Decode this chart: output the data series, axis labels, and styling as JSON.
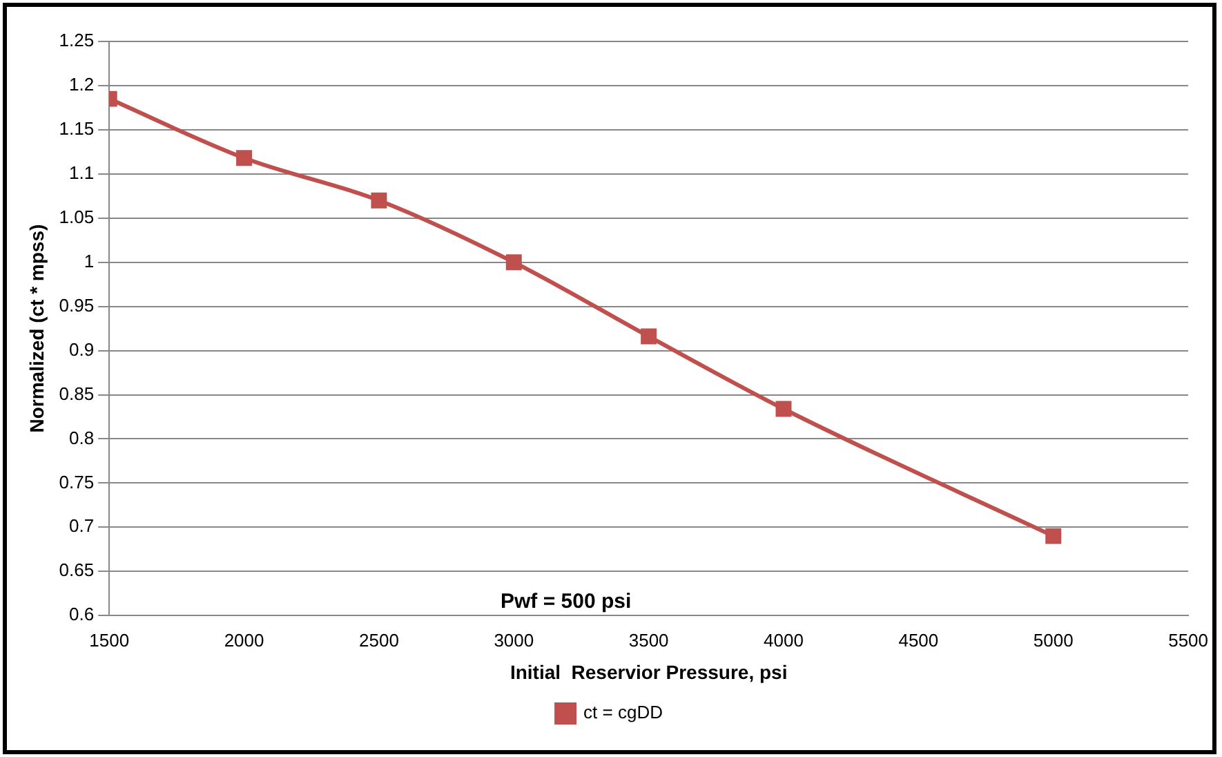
{
  "chart_data": {
    "type": "line",
    "xlabel": "Initial  Reservior Pressure, psi",
    "ylabel": "Normalized (ct * mpss)",
    "x": [
      1500,
      2000,
      2500,
      3000,
      3500,
      4000,
      5000
    ],
    "series": [
      {
        "name": "ct = cgDD",
        "color": "#c0504d",
        "values": [
          1.185,
          1.118,
          1.07,
          1.0,
          0.916,
          0.834,
          0.69
        ]
      }
    ],
    "xlim": [
      1500,
      5500
    ],
    "xticks": [
      1500,
      2000,
      2500,
      3000,
      3500,
      4000,
      4500,
      5000,
      5500
    ],
    "ylim": [
      0.6,
      1.25
    ],
    "yticks": [
      0.6,
      0.65,
      0.7,
      0.75,
      0.8,
      0.85,
      0.9,
      0.95,
      1,
      1.05,
      1.1,
      1.15,
      1.2,
      1.25
    ],
    "grid": "y",
    "legend": "bottom",
    "marker": "square",
    "line_style": "solid",
    "annotations": [
      "Pwf = 500 psi"
    ]
  }
}
